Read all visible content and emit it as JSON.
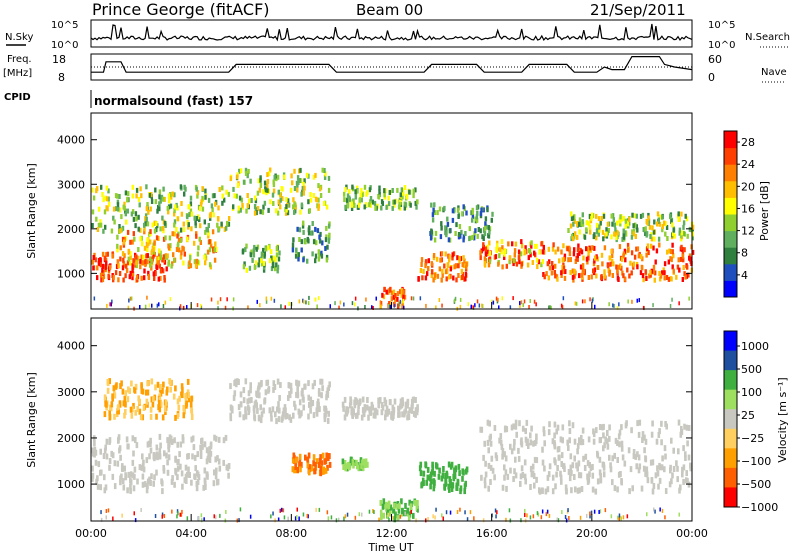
{
  "header": {
    "station": "Prince George (fitACF)",
    "beam": "Beam 00",
    "date": "21/Sep/2011"
  },
  "left_labels": {
    "nsky": "N.Sky",
    "freq_line1": "Freq.",
    "freq_line2": "[MHz]",
    "cpid": "CPID"
  },
  "right_labels": {
    "nsearch": "N.Search",
    "nave": "Nave"
  },
  "cpid_text": "normalsound (fast) 157",
  "colors": {
    "power_scale": [
      "#0000ff",
      "#1f4fbf",
      "#2f7f3f",
      "#5faf5f",
      "#8fcf2f",
      "#ffff00",
      "#ffbf00",
      "#ff7f00",
      "#ff3f00",
      "#ff0000"
    ],
    "velocity_scale": [
      "#ff0000",
      "#ff5f00",
      "#ff9f00",
      "#ffcf5f",
      "#c8c8c0",
      "#9fdf5f",
      "#3faf3f",
      "#1f4f9f",
      "#0000ff"
    ]
  },
  "chart_data": [
    {
      "type": "line",
      "name": "noise",
      "ylabels": [
        "10^5",
        "10^0"
      ],
      "right_ylabels": [
        "10^5",
        "10^0"
      ],
      "xlim": [
        0,
        24
      ]
    },
    {
      "type": "line",
      "name": "frequency",
      "left_ticks": [
        18,
        8
      ],
      "right_ticks": [
        60,
        0
      ],
      "x": [
        0.0,
        0.5,
        0.6,
        1.2,
        1.4,
        5.5,
        5.8,
        9.5,
        9.8,
        13.3,
        13.6,
        15.4,
        15.7,
        17.2,
        17.5,
        19.0,
        19.3,
        20.2,
        20.5,
        20.8,
        21.3,
        21.6,
        22.7,
        22.9,
        23.3,
        24.0
      ],
      "y": [
        11,
        11,
        15,
        15,
        11,
        11,
        14,
        14,
        11,
        11,
        14,
        14,
        11,
        11,
        14,
        14,
        11,
        11,
        13,
        12,
        12,
        17,
        17,
        14,
        13,
        12
      ],
      "nave_dotted": 13,
      "ylim": [
        8,
        18
      ],
      "xlim": [
        0,
        24
      ]
    },
    {
      "type": "heatmap",
      "name": "power",
      "ylabel": "Slant Range [km]",
      "yticks": [
        1000,
        2000,
        3000,
        4000
      ],
      "ylim": [
        200,
        4600
      ],
      "xlim": [
        0,
        24
      ],
      "colorbar_label": "Power [dB]",
      "colorbar_ticks": [
        4,
        8,
        12,
        16,
        20,
        24,
        28
      ],
      "clim": [
        0,
        30
      ]
    },
    {
      "type": "heatmap",
      "name": "velocity",
      "ylabel": "Slant Range [km]",
      "yticks": [
        1000,
        2000,
        3000,
        4000
      ],
      "ylim": [
        200,
        4600
      ],
      "xlim": [
        0,
        24
      ],
      "xlabel": "Time UT",
      "xticks": [
        "00:00",
        "04:00",
        "08:00",
        "12:00",
        "16:00",
        "20:00",
        "00:00"
      ],
      "colorbar_label": "Velocity [m s⁻¹]",
      "colorbar_ticks": [
        "1000",
        "500",
        "100",
        "25",
        "−25",
        "−100",
        "−500",
        "−1000"
      ]
    }
  ]
}
